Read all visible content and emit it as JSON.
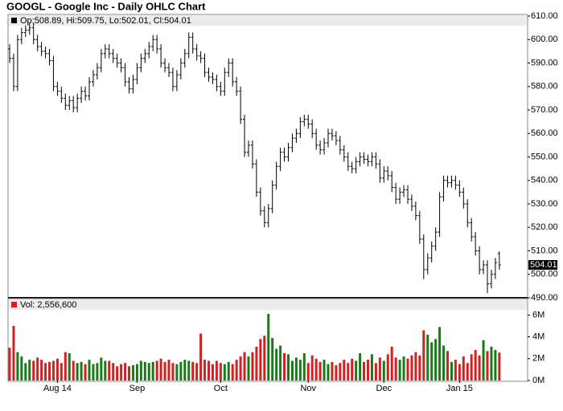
{
  "chart_data": {
    "type": "ohlc",
    "title": "GOOGL - Google Inc - Daily OHLC Chart",
    "ohlc_legend": "Op:508.89, Hi:509.75, Lo:502.01, Cl:504.01",
    "volume_legend": "Vol: 2,556,600",
    "categories": [
      null,
      null,
      null,
      null,
      null,
      null,
      null,
      null,
      null,
      null,
      null,
      null,
      "Aug 14",
      null,
      null,
      null,
      null,
      null,
      null,
      null,
      null,
      null,
      null,
      null,
      null,
      null,
      null,
      null,
      null,
      null,
      null,
      null,
      "Sep",
      null,
      null,
      null,
      null,
      null,
      null,
      null,
      null,
      null,
      null,
      null,
      null,
      null,
      null,
      null,
      null,
      null,
      null,
      null,
      null,
      "Oct",
      null,
      null,
      null,
      null,
      null,
      null,
      null,
      null,
      null,
      null,
      null,
      null,
      null,
      null,
      null,
      null,
      null,
      null,
      null,
      null,
      null,
      "Nov",
      null,
      null,
      null,
      null,
      null,
      null,
      null,
      null,
      null,
      null,
      null,
      null,
      null,
      null,
      null,
      null,
      null,
      null,
      "Dec",
      null,
      null,
      null,
      null,
      null,
      null,
      null,
      null,
      null,
      null,
      null,
      null,
      null,
      null,
      null,
      null,
      null,
      null,
      "Jan 15",
      null,
      null,
      null,
      null,
      null,
      null,
      null,
      null,
      null,
      null
    ],
    "open": [
      596,
      592,
      580,
      600,
      603,
      604,
      605,
      600,
      597,
      595,
      594,
      591,
      580,
      578,
      575,
      572,
      574,
      571,
      575,
      578,
      576,
      582,
      585,
      588,
      594,
      596,
      594,
      592,
      590,
      588,
      582,
      579,
      583,
      588,
      592,
      594,
      597,
      600,
      596,
      590,
      588,
      586,
      580,
      585,
      590,
      594,
      601,
      596,
      593,
      592,
      586,
      584,
      583,
      580,
      578,
      586,
      590,
      582,
      578,
      566,
      552,
      555,
      547,
      535,
      527,
      522,
      528,
      538,
      546,
      552,
      550,
      554,
      558,
      560,
      565,
      566,
      564,
      560,
      555,
      553,
      556,
      560,
      559,
      557,
      553,
      550,
      546,
      545,
      548,
      550,
      549,
      548,
      550,
      547,
      541,
      544,
      542,
      537,
      532,
      535,
      536,
      532,
      529,
      525,
      515,
      502,
      507,
      512,
      518,
      533,
      540,
      539,
      540,
      538,
      535,
      530,
      522,
      516,
      510,
      502,
      504,
      496,
      500,
      508.89
    ],
    "high": [
      598,
      594,
      602,
      605,
      606,
      607,
      607,
      602,
      599,
      597,
      596,
      593,
      582,
      580,
      577,
      576,
      576,
      577,
      580,
      580,
      584,
      587,
      590,
      596,
      598,
      598,
      596,
      594,
      592,
      590,
      584,
      585,
      590,
      594,
      596,
      599,
      602,
      602,
      598,
      592,
      590,
      588,
      587,
      592,
      596,
      603,
      603,
      598,
      595,
      594,
      588,
      586,
      585,
      582,
      588,
      592,
      592,
      584,
      580,
      568,
      557,
      557,
      549,
      537,
      529,
      530,
      540,
      548,
      554,
      554,
      556,
      560,
      562,
      567,
      568,
      568,
      566,
      562,
      557,
      558,
      562,
      562,
      561,
      559,
      555,
      552,
      548,
      550,
      552,
      552,
      551,
      552,
      552,
      549,
      546,
      546,
      544,
      539,
      537,
      538,
      538,
      534,
      531,
      527,
      517,
      509,
      514,
      520,
      535,
      542,
      542,
      542,
      542,
      540,
      537,
      532,
      524,
      518,
      512,
      506,
      506,
      502,
      507,
      509.75
    ],
    "low": [
      590,
      578,
      578,
      598,
      601,
      602,
      598,
      595,
      593,
      592,
      589,
      578,
      576,
      573,
      570,
      570,
      569,
      569,
      573,
      574,
      574,
      580,
      583,
      586,
      592,
      592,
      590,
      588,
      586,
      580,
      577,
      577,
      581,
      586,
      590,
      592,
      595,
      594,
      588,
      586,
      584,
      578,
      578,
      583,
      588,
      592,
      594,
      591,
      590,
      584,
      582,
      581,
      578,
      576,
      576,
      584,
      580,
      576,
      564,
      550,
      550,
      545,
      533,
      525,
      520,
      520,
      526,
      536,
      544,
      548,
      548,
      552,
      556,
      558,
      563,
      562,
      558,
      553,
      551,
      551,
      554,
      557,
      555,
      551,
      548,
      544,
      543,
      543,
      546,
      547,
      546,
      546,
      545,
      539,
      539,
      540,
      535,
      530,
      530,
      533,
      530,
      527,
      523,
      513,
      498,
      500,
      505,
      510,
      516,
      531,
      537,
      537,
      536,
      533,
      528,
      520,
      514,
      508,
      500,
      500,
      492,
      494,
      498,
      502.01
    ],
    "close": [
      592,
      580,
      600,
      603,
      604,
      605,
      600,
      597,
      595,
      594,
      591,
      580,
      578,
      575,
      572,
      574,
      571,
      575,
      578,
      576,
      582,
      585,
      588,
      594,
      596,
      594,
      592,
      590,
      588,
      582,
      579,
      583,
      588,
      592,
      594,
      597,
      600,
      596,
      590,
      588,
      586,
      580,
      585,
      590,
      594,
      601,
      596,
      593,
      592,
      586,
      584,
      583,
      580,
      578,
      586,
      590,
      582,
      578,
      566,
      552,
      555,
      547,
      535,
      527,
      522,
      528,
      538,
      546,
      552,
      550,
      554,
      558,
      560,
      565,
      566,
      564,
      560,
      555,
      553,
      556,
      560,
      559,
      557,
      553,
      550,
      546,
      545,
      548,
      550,
      549,
      548,
      550,
      547,
      541,
      544,
      542,
      537,
      532,
      535,
      536,
      532,
      529,
      525,
      515,
      502,
      507,
      512,
      518,
      533,
      540,
      539,
      540,
      538,
      535,
      530,
      522,
      516,
      510,
      502,
      504,
      496,
      500,
      505,
      504.01
    ],
    "volume": [
      3000000,
      5000000,
      2600000,
      2200000,
      1600000,
      1900000,
      1800000,
      2100000,
      1900000,
      1600000,
      1700000,
      1800000,
      2000000,
      1600000,
      2600000,
      2500000,
      1800000,
      1600000,
      1700000,
      1500000,
      1900000,
      1500000,
      1600000,
      2100000,
      1800000,
      1800000,
      1600000,
      1300000,
      1500000,
      1600000,
      1300000,
      1400000,
      1500000,
      1800000,
      1700000,
      1600000,
      1700000,
      1800000,
      2000000,
      1700000,
      1900000,
      1600000,
      1500000,
      1700000,
      1900000,
      1800000,
      1700000,
      1600000,
      4300000,
      1900000,
      1800000,
      1500000,
      1800000,
      1600000,
      1500000,
      1700000,
      1500000,
      1900000,
      2200000,
      2600000,
      2200000,
      2600000,
      3100000,
      3800000,
      4100000,
      6100000,
      3900000,
      2900000,
      3200000,
      2500000,
      2400000,
      1800000,
      2100000,
      1900000,
      2500000,
      1600000,
      2300000,
      2000000,
      1700000,
      1900000,
      1500000,
      1700000,
      1400000,
      1600000,
      1900000,
      1600000,
      2000000,
      1800000,
      2500000,
      1700000,
      1900000,
      2400000,
      1600000,
      2100000,
      1800000,
      2400000,
      3100000,
      2100000,
      1900000,
      2200000,
      2000000,
      2300000,
      2600000,
      2300000,
      4600000,
      4200000,
      3500000,
      3800000,
      4900000,
      3200000,
      2700000,
      1700000,
      1900000,
      1500000,
      2200000,
      1600000,
      2400000,
      2800000,
      2300000,
      3700000,
      2700000,
      3100000,
      2800000,
      2556600
    ],
    "ylim": [
      490,
      610
    ],
    "yticks": [
      {
        "value": 490,
        "label": "490.00"
      },
      {
        "value": 500,
        "label": "500.00"
      },
      {
        "value": 510,
        "label": "510.00"
      },
      {
        "value": 520,
        "label": "520.00"
      },
      {
        "value": 530,
        "label": "530.00"
      },
      {
        "value": 540,
        "label": "540.00"
      },
      {
        "value": 550,
        "label": "550.00"
      },
      {
        "value": 560,
        "label": "560.00"
      },
      {
        "value": 570,
        "label": "570.00"
      },
      {
        "value": 580,
        "label": "580.00"
      },
      {
        "value": 590,
        "label": "590.00"
      },
      {
        "value": 600,
        "label": "600.00"
      },
      {
        "value": 610,
        "label": "610.00"
      }
    ],
    "volume_ylim": [
      0,
      7500000
    ],
    "volume_yticks": [
      {
        "value": 0,
        "label": "0M"
      },
      {
        "value": 2000000,
        "label": "2M"
      },
      {
        "value": 4000000,
        "label": "4M"
      },
      {
        "value": 6000000,
        "label": "6M"
      }
    ],
    "bar_color": "#000000",
    "up_color": "#1a7a1a",
    "down_color": "#d42020"
  }
}
